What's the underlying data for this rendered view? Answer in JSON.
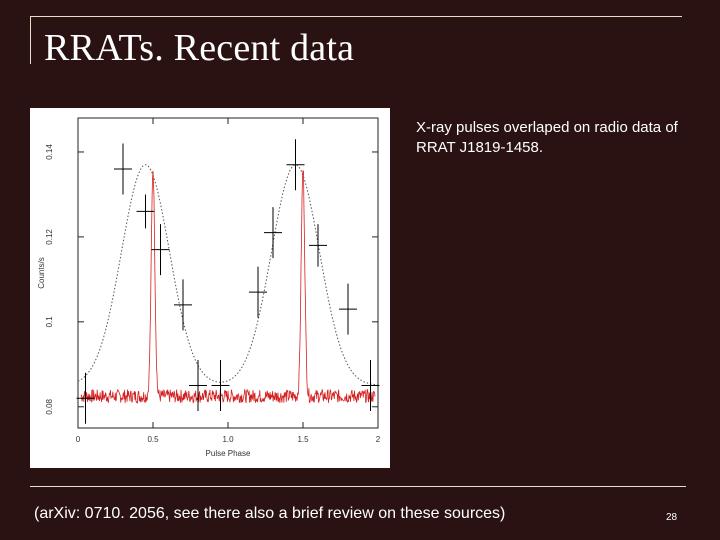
{
  "title": "RRATs. Recent data",
  "caption": "X-ray pulses overlaped on radio data of RRAT J1819-1458.",
  "footnote": "(arXiv: 0710. 2056, see there also a brief review on these sources)",
  "page_number": "28",
  "colors": {
    "background": "#2a1212",
    "radio_trace": "#d42020",
    "xray_model": "#555555",
    "error_bars": "#000000"
  },
  "chart_data": {
    "type": "line",
    "xlabel": "Pulse Phase",
    "ylabel": "Counts/s",
    "xlim": [
      0,
      2
    ],
    "ylim": [
      0.075,
      0.148
    ],
    "x_ticks": [
      "0",
      "0.5",
      "1.0",
      "1.5",
      "2"
    ],
    "y_ticks": [
      "0.08",
      "0.1",
      "0.12",
      "0.14"
    ],
    "grid": false,
    "series": [
      {
        "kind": "error_bars",
        "points": [
          {
            "x": 0.05,
            "y": 0.082,
            "yerr": 0.006
          },
          {
            "x": 0.3,
            "y": 0.136,
            "yerr": 0.006
          },
          {
            "x": 0.45,
            "y": 0.126,
            "yerr": 0.004
          },
          {
            "x": 0.55,
            "y": 0.117,
            "yerr": 0.006
          },
          {
            "x": 0.7,
            "y": 0.104,
            "yerr": 0.006
          },
          {
            "x": 0.8,
            "y": 0.085,
            "yerr": 0.006
          },
          {
            "x": 0.95,
            "y": 0.085,
            "yerr": 0.006
          },
          {
            "x": 1.2,
            "y": 0.107,
            "yerr": 0.006
          },
          {
            "x": 1.3,
            "y": 0.121,
            "yerr": 0.006
          },
          {
            "x": 1.45,
            "y": 0.137,
            "yerr": 0.006
          },
          {
            "x": 1.6,
            "y": 0.118,
            "yerr": 0.005
          },
          {
            "x": 1.8,
            "y": 0.103,
            "yerr": 0.006
          },
          {
            "x": 1.95,
            "y": 0.085,
            "yerr": 0.006
          }
        ]
      },
      {
        "kind": "model_curve",
        "baseline": 0.085,
        "amplitude": 0.052,
        "peaks": [
          0.45,
          1.45
        ],
        "width": 0.16
      },
      {
        "kind": "radio_trace",
        "baseline": 0.0825,
        "noise": 0.0016,
        "peak_height": 0.136,
        "peaks": [
          0.5,
          1.5
        ],
        "peak_width": 0.012,
        "samples": 600
      }
    ]
  }
}
